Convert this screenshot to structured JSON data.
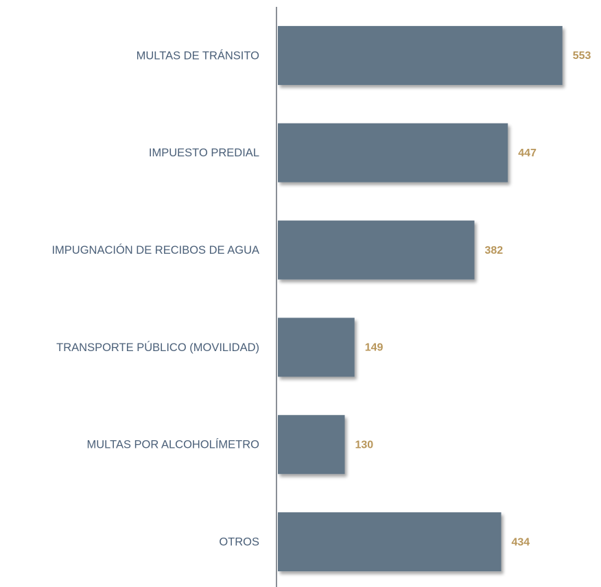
{
  "chart_data": {
    "type": "barh",
    "categories": [
      "MULTAS DE TRÁNSITO",
      "IMPUESTO PREDIAL",
      "IMPUGNACIÓN DE RECIBOS DE AGUA",
      "TRANSPORTE PÚBLICO (MOVILIDAD)",
      "MULTAS POR ALCOHOLÍMETRO",
      "OTROS"
    ],
    "values": [
      553,
      447,
      382,
      149,
      130,
      434
    ],
    "color": "#627687",
    "label_color": "#b8965a",
    "xlim": [
      0,
      600
    ]
  }
}
